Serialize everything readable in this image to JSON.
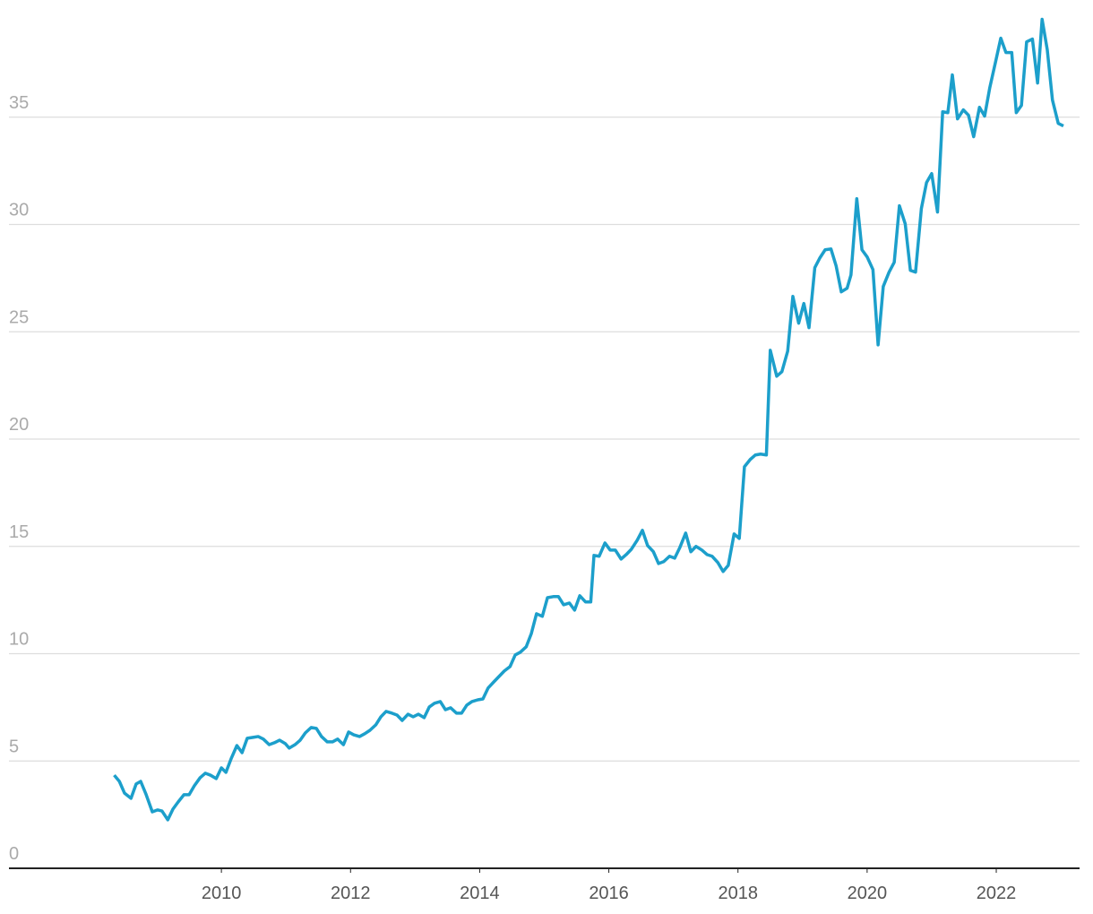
{
  "chart_data": {
    "type": "line",
    "x": [
      2008.34,
      2008.42,
      2008.5,
      2008.6,
      2008.68,
      2008.75,
      2008.83,
      2008.93,
      2009.01,
      2009.08,
      2009.17,
      2009.25,
      2009.33,
      2009.42,
      2009.5,
      2009.58,
      2009.67,
      2009.75,
      2009.83,
      2009.92,
      2010.0,
      2010.07,
      2010.15,
      2010.24,
      2010.32,
      2010.4,
      2010.49,
      2010.57,
      2010.65,
      2010.74,
      2010.82,
      2010.9,
      2010.99,
      2011.05,
      2011.14,
      2011.22,
      2011.3,
      2011.39,
      2011.47,
      2011.55,
      2011.64,
      2011.72,
      2011.8,
      2011.89,
      2011.97,
      2012.05,
      2012.14,
      2012.22,
      2012.3,
      2012.39,
      2012.47,
      2012.55,
      2012.64,
      2012.72,
      2012.8,
      2012.89,
      2012.97,
      2013.05,
      2013.14,
      2013.22,
      2013.3,
      2013.39,
      2013.47,
      2013.55,
      2013.64,
      2013.72,
      2013.8,
      2013.88,
      2013.97,
      2014.05,
      2014.13,
      2014.22,
      2014.3,
      2014.38,
      2014.47,
      2014.55,
      2014.63,
      2014.72,
      2014.8,
      2014.88,
      2014.97,
      2015.05,
      2015.14,
      2015.22,
      2015.3,
      2015.39,
      2015.47,
      2015.55,
      2015.64,
      2015.72,
      2015.77,
      2015.85,
      2015.94,
      2016.02,
      2016.1,
      2016.19,
      2016.27,
      2016.35,
      2016.44,
      2016.52,
      2016.6,
      2016.69,
      2016.77,
      2016.85,
      2016.94,
      2017.02,
      2017.1,
      2017.19,
      2017.27,
      2017.35,
      2017.44,
      2017.52,
      2017.6,
      2017.69,
      2017.77,
      2017.85,
      2017.94,
      2018.02,
      2018.1,
      2018.19,
      2018.27,
      2018.35,
      2018.44,
      2018.5,
      2018.6,
      2018.68,
      2018.77,
      2018.85,
      2018.94,
      2019.02,
      2019.1,
      2019.19,
      2019.27,
      2019.35,
      2019.44,
      2019.52,
      2019.6,
      2019.69,
      2019.75,
      2019.84,
      2019.92,
      2020.0,
      2020.09,
      2020.17,
      2020.25,
      2020.34,
      2020.42,
      2020.5,
      2020.59,
      2020.67,
      2020.75,
      2020.84,
      2020.92,
      2021.0,
      2021.09,
      2021.17,
      2021.25,
      2021.32,
      2021.4,
      2021.49,
      2021.57,
      2021.65,
      2021.74,
      2021.82,
      2021.9,
      2021.99,
      2022.07,
      2022.15,
      2022.24,
      2022.31,
      2022.39,
      2022.47,
      2022.56,
      2022.64,
      2022.71,
      2022.79,
      2022.87,
      2022.96,
      2023.04
    ],
    "series": [
      {
        "color": "#1c9fcb",
        "values": [
          4.34,
          4.05,
          3.5,
          3.26,
          3.93,
          4.05,
          3.47,
          2.63,
          2.72,
          2.67,
          2.26,
          2.76,
          3.09,
          3.43,
          3.43,
          3.84,
          4.22,
          4.43,
          4.34,
          4.18,
          4.68,
          4.47,
          5.1,
          5.72,
          5.39,
          6.06,
          6.1,
          6.14,
          6.02,
          5.76,
          5.85,
          5.97,
          5.81,
          5.6,
          5.76,
          5.97,
          6.31,
          6.56,
          6.52,
          6.14,
          5.89,
          5.89,
          6.02,
          5.76,
          6.35,
          6.22,
          6.14,
          6.27,
          6.43,
          6.68,
          7.06,
          7.31,
          7.23,
          7.14,
          6.89,
          7.18,
          7.06,
          7.18,
          7.02,
          7.52,
          7.69,
          7.77,
          7.39,
          7.48,
          7.23,
          7.23,
          7.6,
          7.77,
          7.85,
          7.89,
          8.4,
          8.69,
          8.94,
          9.19,
          9.4,
          9.94,
          10.07,
          10.32,
          10.94,
          11.86,
          11.74,
          12.61,
          12.66,
          12.66,
          12.28,
          12.36,
          12.03,
          12.7,
          12.41,
          12.41,
          14.58,
          14.54,
          15.16,
          14.83,
          14.83,
          14.41,
          14.62,
          14.87,
          15.29,
          15.75,
          15.04,
          14.75,
          14.2,
          14.29,
          14.54,
          14.45,
          14.95,
          15.62,
          14.75,
          15.0,
          14.83,
          14.62,
          14.54,
          14.24,
          13.83,
          14.12,
          15.58,
          15.37,
          18.71,
          19.05,
          19.26,
          19.3,
          19.26,
          24.14,
          22.93,
          23.14,
          24.1,
          26.65,
          25.4,
          26.32,
          25.19,
          27.99,
          28.45,
          28.82,
          28.86,
          28.07,
          26.86,
          27.03,
          27.65,
          31.2,
          28.82,
          28.49,
          27.9,
          24.39,
          27.11,
          27.78,
          28.24,
          30.87,
          30.03,
          27.86,
          27.78,
          30.74,
          31.95,
          32.37,
          30.58,
          35.25,
          35.21,
          36.97,
          34.92,
          35.34,
          35.09,
          34.09,
          35.46,
          35.05,
          36.38,
          37.59,
          38.68,
          38.01,
          38.01,
          35.21,
          35.55,
          38.51,
          38.64,
          36.59,
          39.56,
          38.14,
          35.8,
          34.71,
          34.59
        ]
      }
    ],
    "xlim": [
      2006.71,
      2023.29
    ],
    "xticks": [
      2010,
      2012,
      2014,
      2016,
      2018,
      2020,
      2022
    ],
    "ylim": [
      0,
      40
    ],
    "yticks": [
      0,
      5,
      10,
      15,
      20,
      25,
      30,
      35
    ],
    "grid": true
  }
}
